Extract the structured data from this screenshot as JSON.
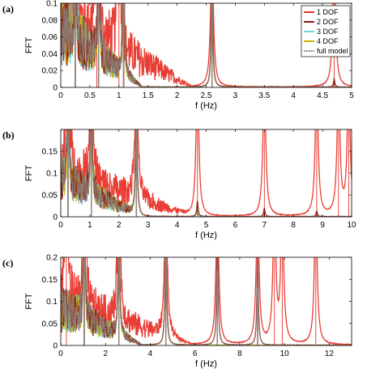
{
  "chart_data": [
    {
      "panel": "(a)",
      "type": "line",
      "xlabel": "f (Hz)",
      "ylabel": "FFT",
      "xlim": [
        0,
        5
      ],
      "ylim": [
        0,
        0.1
      ],
      "xticks": [
        "0",
        "0.5",
        "1",
        "1.5",
        "2",
        "2.5",
        "3",
        "3.5",
        "4",
        "4.5",
        "5"
      ],
      "yticks": [
        "0",
        "0.02",
        "0.04",
        "0.06",
        "0.08",
        "0.1"
      ],
      "legend": {
        "position": "top-right"
      },
      "series": [
        {
          "name": "1 DOF",
          "color": "#e8342a",
          "peaks": [
            [
              0.25,
              0.1
            ],
            [
              0.62,
              0.1
            ],
            [
              1.0,
              0.1
            ],
            [
              2.6,
              0.1
            ],
            [
              4.7,
              0.1
            ]
          ]
        },
        {
          "name": "2 DOF",
          "color": "#8b1a0e",
          "peaks": [
            [
              0.25,
              0.1
            ],
            [
              0.65,
              0.1
            ],
            [
              1.08,
              0.1
            ],
            [
              2.6,
              0.1
            ],
            [
              4.7,
              0.006
            ]
          ]
        },
        {
          "name": "3 DOF",
          "color": "#6fd3d8",
          "peaks": [
            [
              0.25,
              0.1
            ],
            [
              0.65,
              0.1
            ],
            [
              1.08,
              0.1
            ],
            [
              2.6,
              0.1
            ]
          ]
        },
        {
          "name": "4 DOF",
          "color": "#c8b400",
          "peaks": [
            [
              0.25,
              0.1
            ],
            [
              0.65,
              0.1
            ],
            [
              1.08,
              0.1
            ],
            [
              2.6,
              0.1
            ]
          ]
        },
        {
          "name": "full model",
          "color": "#8a8a8a",
          "peaks": [
            [
              0.25,
              0.1
            ],
            [
              0.65,
              0.1
            ],
            [
              1.08,
              0.1
            ],
            [
              2.6,
              0.1
            ]
          ]
        }
      ]
    },
    {
      "panel": "(b)",
      "type": "line",
      "xlabel": "f (Hz)",
      "ylabel": "FFT",
      "xlim": [
        0,
        10
      ],
      "ylim": [
        0,
        0.2
      ],
      "xticks": [
        "0",
        "1",
        "2",
        "3",
        "4",
        "5",
        "6",
        "7",
        "8",
        "9",
        "10"
      ],
      "yticks": [
        "0",
        "0.05",
        "0.1",
        "0.15"
      ],
      "series": [
        {
          "name": "1 DOF",
          "color": "#e8342a",
          "peaks": [
            [
              0.25,
              0.2
            ],
            [
              1.05,
              0.2
            ],
            [
              2.6,
              0.2
            ],
            [
              4.7,
              0.2
            ],
            [
              7.0,
              0.2
            ],
            [
              8.8,
              0.2
            ],
            [
              9.55,
              0.2
            ],
            [
              9.9,
              0.2
            ]
          ]
        },
        {
          "name": "2 DOF",
          "color": "#8b1a0e",
          "peaks": [
            [
              0.25,
              0.2
            ],
            [
              1.05,
              0.2
            ],
            [
              2.6,
              0.2
            ],
            [
              4.7,
              0.022
            ],
            [
              7.0,
              0.012
            ],
            [
              8.8,
              0.008
            ]
          ]
        },
        {
          "name": "3 DOF",
          "color": "#6fd3d8",
          "peaks": [
            [
              0.25,
              0.2
            ],
            [
              1.05,
              0.2
            ],
            [
              2.6,
              0.2
            ],
            [
              4.7,
              0.012
            ]
          ]
        },
        {
          "name": "4 DOF",
          "color": "#c8b400",
          "peaks": [
            [
              0.25,
              0.2
            ],
            [
              1.05,
              0.2
            ],
            [
              2.6,
              0.2
            ],
            [
              4.7,
              0.012
            ]
          ]
        },
        {
          "name": "full model",
          "color": "#8a8a8a",
          "peaks": [
            [
              0.25,
              0.2
            ],
            [
              1.05,
              0.2
            ],
            [
              2.6,
              0.2
            ],
            [
              4.7,
              0.012
            ]
          ]
        }
      ]
    },
    {
      "panel": "(c)",
      "type": "line",
      "xlabel": "f (Hz)",
      "ylabel": "FFT",
      "xlim": [
        0,
        13
      ],
      "ylim": [
        0,
        0.2
      ],
      "xticks": [
        "0",
        "2",
        "4",
        "6",
        "8",
        "10",
        "12"
      ],
      "yticks": [
        "0",
        "0.05",
        "0.1",
        "0.15",
        "0.2"
      ],
      "series": [
        {
          "name": "1 DOF",
          "color": "#e8342a",
          "peaks": [
            [
              0.25,
              0.2
            ],
            [
              1.05,
              0.2
            ],
            [
              2.6,
              0.2
            ],
            [
              4.7,
              0.2
            ],
            [
              7.0,
              0.2
            ],
            [
              8.8,
              0.2
            ],
            [
              9.55,
              0.2
            ],
            [
              9.9,
              0.2
            ],
            [
              11.4,
              0.2
            ]
          ]
        },
        {
          "name": "2 DOF",
          "color": "#8b1a0e",
          "peaks": [
            [
              1.05,
              0.2
            ],
            [
              2.6,
              0.2
            ],
            [
              4.7,
              0.2
            ],
            [
              7.0,
              0.17
            ],
            [
              8.8,
              0.13
            ]
          ]
        },
        {
          "name": "3 DOF",
          "color": "#6fd3d8",
          "peaks": [
            [
              1.05,
              0.2
            ],
            [
              2.6,
              0.2
            ],
            [
              4.7,
              0.2
            ]
          ]
        },
        {
          "name": "4 DOF",
          "color": "#c8b400",
          "peaks": [
            [
              1.05,
              0.2
            ],
            [
              2.6,
              0.2
            ],
            [
              4.7,
              0.2
            ]
          ]
        },
        {
          "name": "full model",
          "color": "#8a8a8a",
          "peaks": [
            [
              1.05,
              0.2
            ],
            [
              2.6,
              0.2
            ],
            [
              4.7,
              0.2
            ],
            [
              7.0,
              0.17
            ],
            [
              8.8,
              0.13
            ]
          ]
        }
      ]
    }
  ]
}
